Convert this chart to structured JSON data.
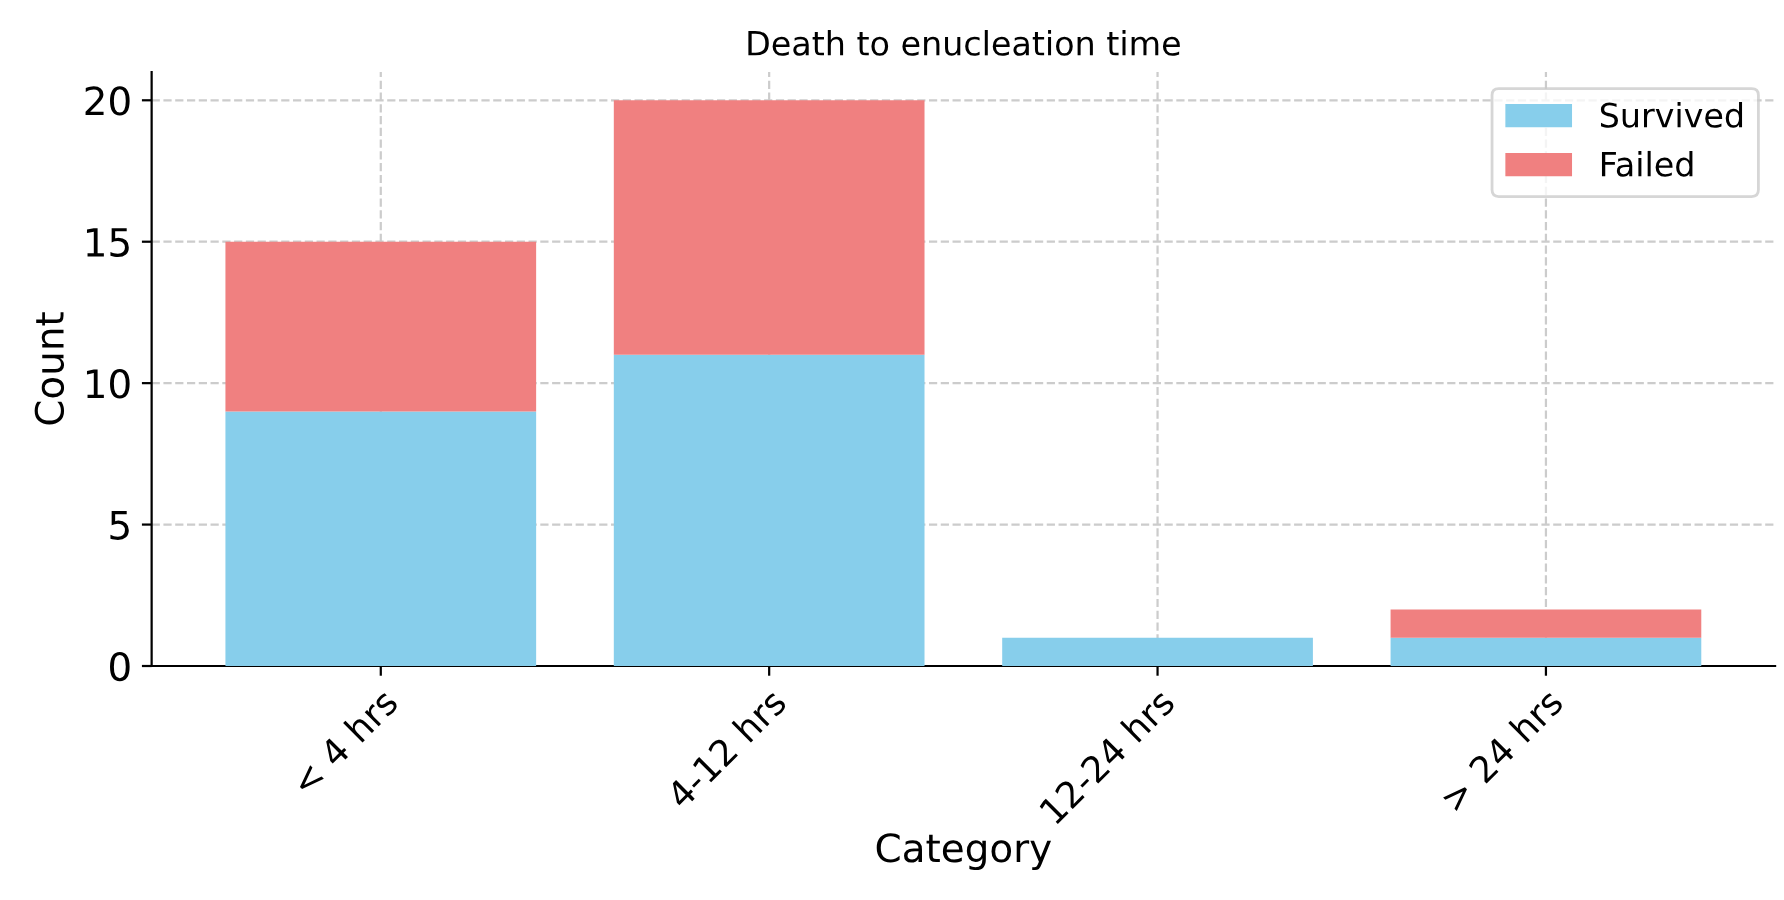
{
  "chart_data": {
    "type": "bar",
    "title": "Death to enucleation time",
    "xlabel": "Category",
    "ylabel": "Count",
    "categories": [
      "< 4 hrs",
      "4-12 hrs",
      "12-24 hrs",
      "> 24 hrs"
    ],
    "series": [
      {
        "name": "Survived",
        "color": "#87ceeb",
        "values": [
          9,
          11,
          1,
          1
        ]
      },
      {
        "name": "Failed",
        "color": "#f08080",
        "values": [
          6,
          9,
          0,
          1
        ]
      }
    ],
    "stacked": true,
    "ylim": [
      0,
      21
    ],
    "yticks": [
      0,
      5,
      10,
      15,
      20
    ],
    "grid": true,
    "legend": "top right"
  }
}
